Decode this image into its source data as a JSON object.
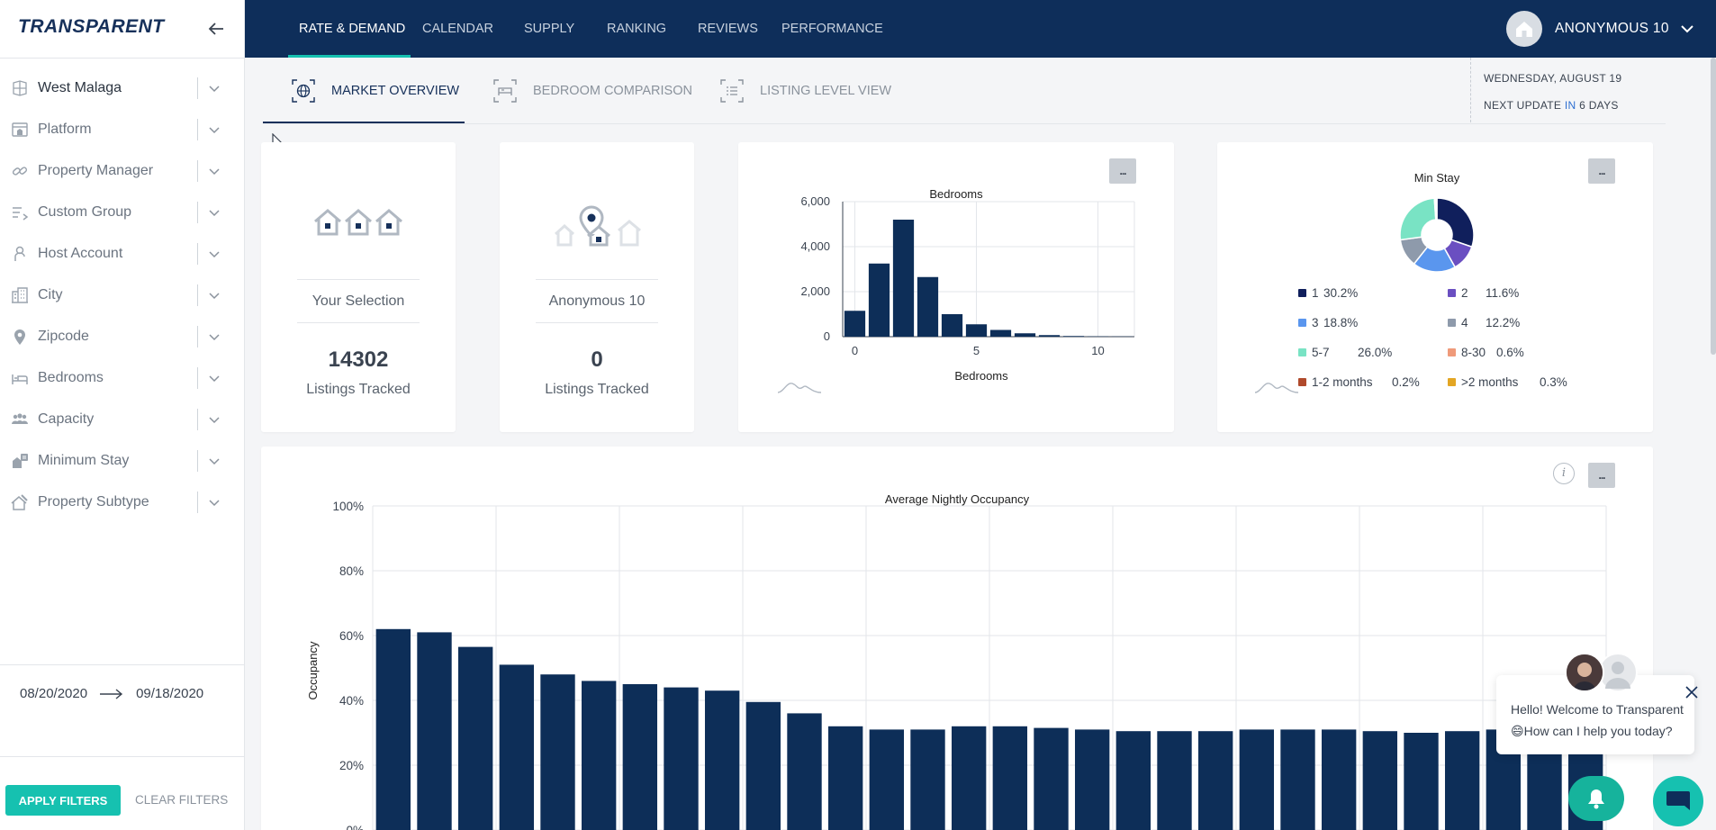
{
  "brand": "TRANSPARENT",
  "sidebar": {
    "filters": [
      {
        "label": "West Malaga",
        "icon": "region-icon"
      },
      {
        "label": "Platform",
        "icon": "platform-icon"
      },
      {
        "label": "Property Manager",
        "icon": "link-icon"
      },
      {
        "label": "Custom Group",
        "icon": "list-icon"
      },
      {
        "label": "Host Account",
        "icon": "person-icon"
      },
      {
        "label": "City",
        "icon": "city-icon"
      },
      {
        "label": "Zipcode",
        "icon": "pin-icon"
      },
      {
        "label": "Bedrooms",
        "icon": "bed-icon"
      },
      {
        "label": "Capacity",
        "icon": "people-icon"
      },
      {
        "label": "Minimum Stay",
        "icon": "calendar-stay-icon"
      },
      {
        "label": "Property Subtype",
        "icon": "house-icon"
      }
    ],
    "date_from": "08/20/2020",
    "date_to": "09/18/2020",
    "apply_label": "APPLY FILTERS",
    "clear_label": "CLEAR FILTERS"
  },
  "topnav": {
    "items": [
      "RATE & DEMAND",
      "CALENDAR",
      "SUPPLY",
      "RANKING",
      "REVIEWS",
      "PERFORMANCE"
    ],
    "active_index": 0,
    "user_name": "ANONYMOUS 10"
  },
  "subtabs": {
    "items": [
      "MARKET OVERVIEW",
      "BEDROOM COMPARISON",
      "LISTING LEVEL VIEW"
    ],
    "active_index": 0,
    "date_label": "WEDNESDAY, AUGUST 19",
    "update_prefix": "NEXT UPDATE ",
    "update_highlight": "IN",
    "update_suffix": " 6 DAYS"
  },
  "stats": {
    "selection": {
      "label": "Your Selection",
      "value": "14302",
      "sub": "Listings Tracked"
    },
    "account": {
      "label": "Anonymous 10",
      "value": "0",
      "sub": "Listings Tracked"
    }
  },
  "more_label": "...",
  "info_label": "i",
  "colors": {
    "navy": "#0e2e5a",
    "teal": "#16c1b0",
    "bar": "#0d2e58"
  },
  "chart_data": [
    {
      "type": "bar",
      "title": "Bedrooms",
      "xlabel": "Bedrooms",
      "ylabel": "",
      "x": [
        0,
        1,
        2,
        3,
        4,
        5,
        6,
        7,
        8,
        9,
        10,
        11
      ],
      "values": [
        1150,
        3250,
        5200,
        2650,
        1000,
        550,
        300,
        150,
        70,
        30,
        15,
        10
      ],
      "ylim": [
        0,
        6000
      ],
      "yticks": [
        "0",
        "2,000",
        "4,000",
        "6,000"
      ],
      "xticks": [
        "0",
        "5",
        "10"
      ],
      "grid": true
    },
    {
      "type": "pie",
      "title": "Min Stay",
      "slices": [
        {
          "label": "1",
          "value": 30.2,
          "pct": "30.2%",
          "color": "#101f5c"
        },
        {
          "label": "2",
          "value": 11.6,
          "pct": "11.6%",
          "color": "#6a4fc1"
        },
        {
          "label": "3",
          "value": 18.8,
          "pct": "18.8%",
          "color": "#5a96ee"
        },
        {
          "label": "4",
          "value": 12.2,
          "pct": "12.2%",
          "color": "#8e9aab"
        },
        {
          "label": "5-7",
          "value": 26.0,
          "pct": "26.0%",
          "color": "#79e3c4"
        },
        {
          "label": "8-30",
          "value": 0.6,
          "pct": "0.6%",
          "color": "#ef9a7a"
        },
        {
          "label": "1-2 months",
          "value": 0.2,
          "pct": "0.2%",
          "color": "#b04a2c"
        },
        {
          "label": ">2 months",
          "value": 0.3,
          "pct": "0.3%",
          "color": "#e3a624"
        }
      ]
    },
    {
      "type": "bar",
      "title": "Average Nightly Occupancy",
      "ylabel": "Occupancy",
      "values": [
        62,
        61,
        56.5,
        51,
        48,
        46,
        45,
        44,
        43,
        39.5,
        36,
        32,
        31,
        31,
        32,
        32,
        31.5,
        31,
        30.5,
        30.5,
        30.5,
        31,
        31,
        31,
        30.5,
        30,
        30.5,
        31,
        31,
        31
      ],
      "ylim": [
        0,
        100
      ],
      "yticks": [
        "0%",
        "20%",
        "40%",
        "60%",
        "80%",
        "100%"
      ],
      "grid": true
    }
  ],
  "chat": {
    "line1": "Hello! Welcome to Transparent",
    "line2": "😄How can I help you today?"
  }
}
